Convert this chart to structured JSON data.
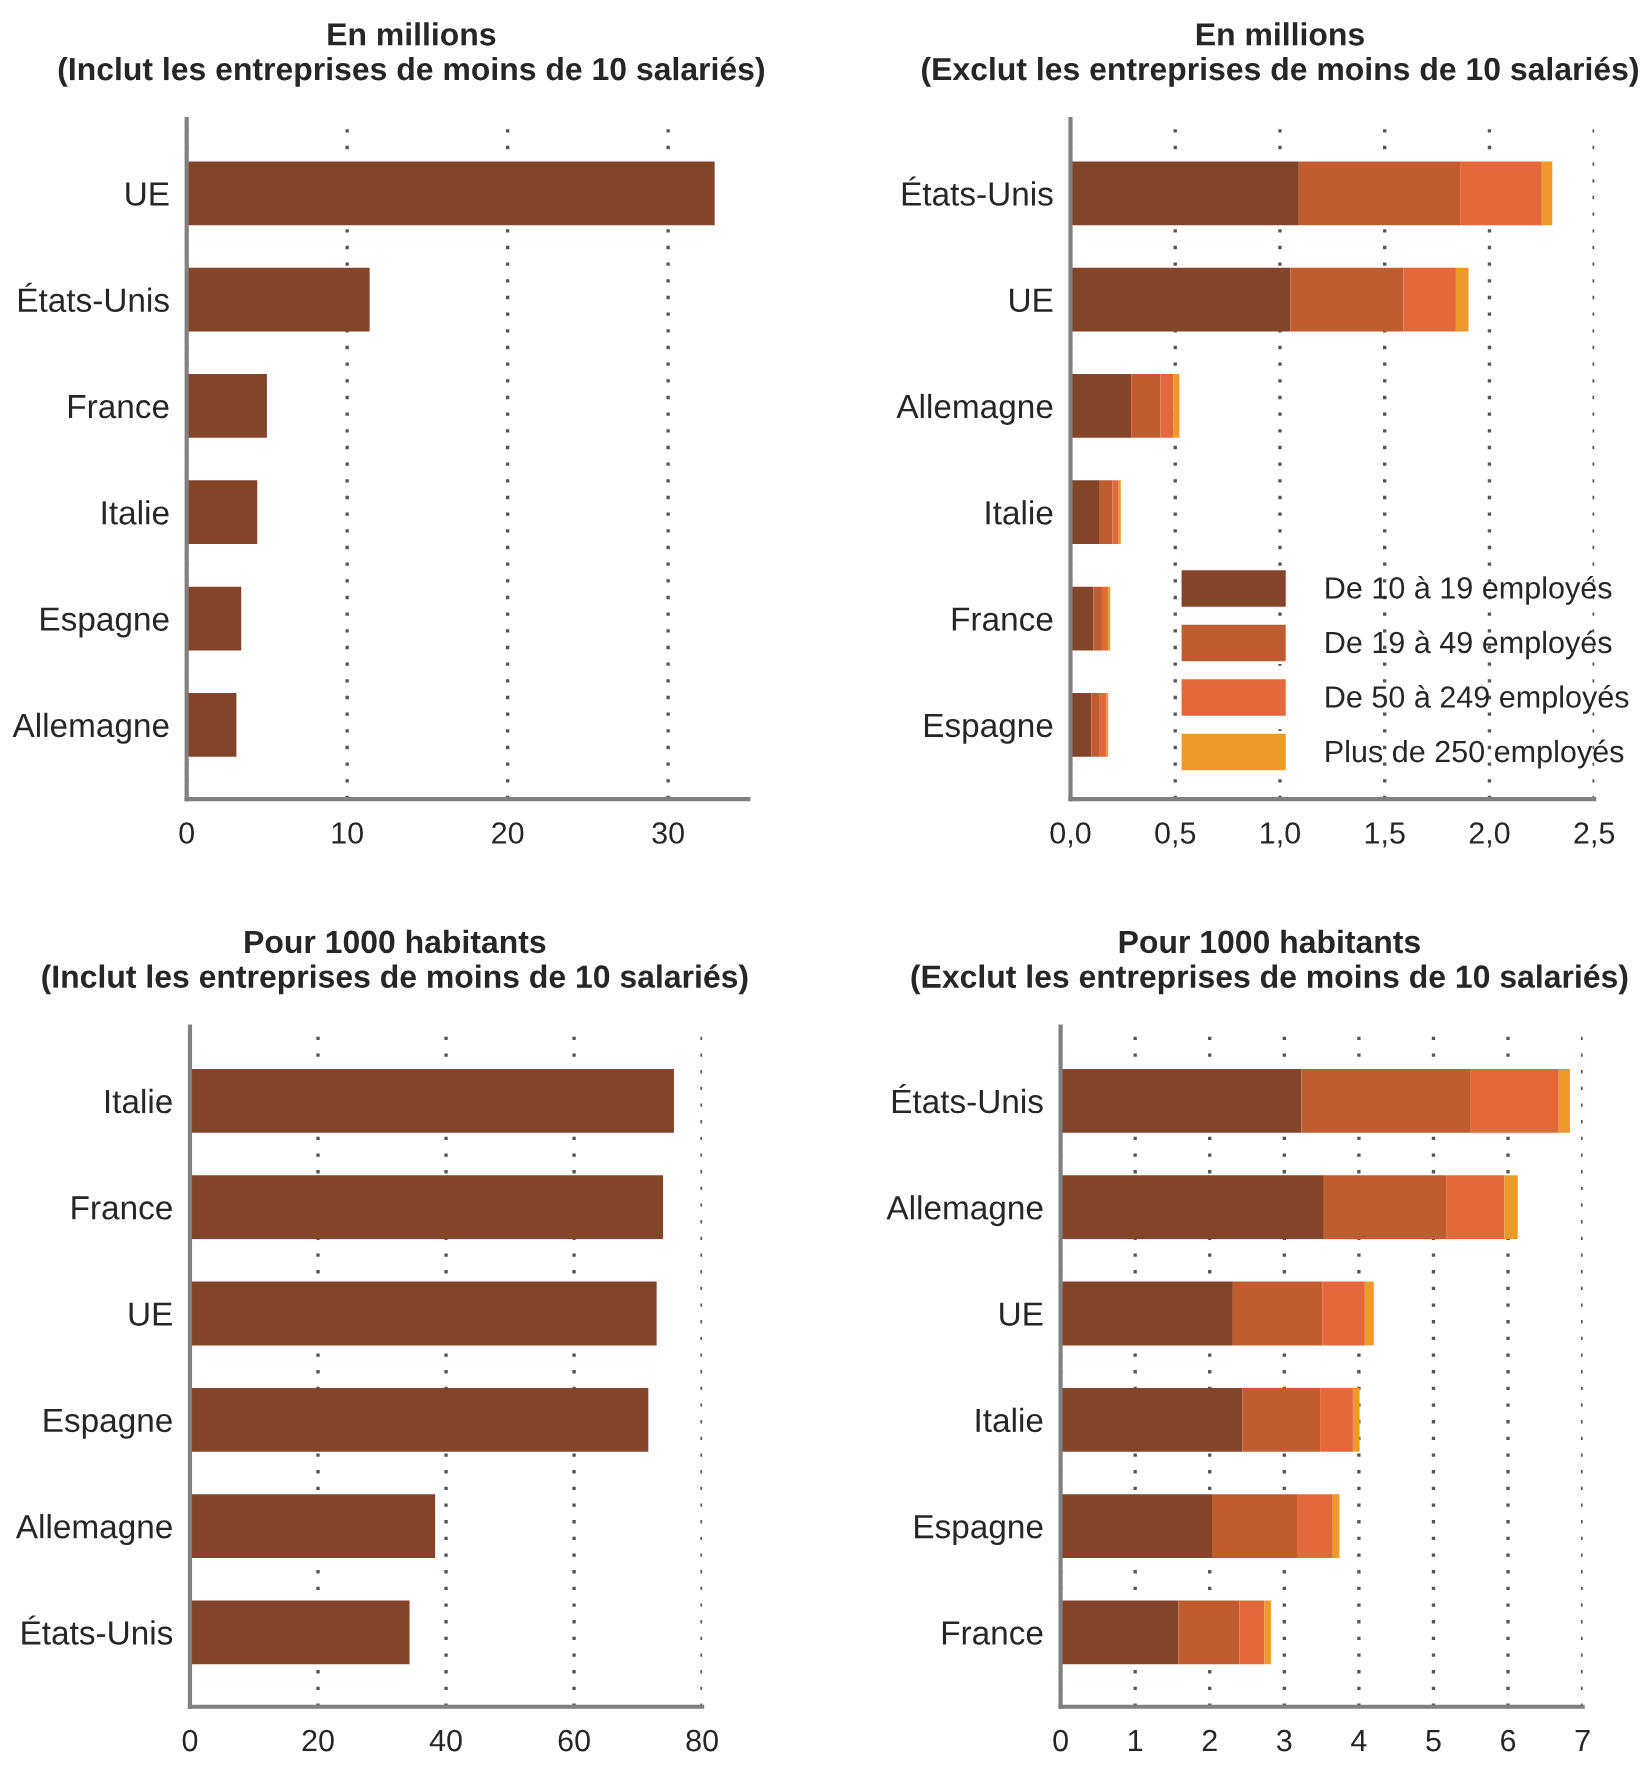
{
  "chart_data": [
    {
      "type": "bar",
      "orientation": "horizontal",
      "title": "En millions",
      "subtitle": "(Inclut les entreprises de moins de 10 salariés)",
      "categories": [
        "UE",
        "États-Unis",
        "France",
        "Italie",
        "Espagne",
        "Allemagne"
      ],
      "series": [
        {
          "color": "#83452a",
          "values": [
            32.9,
            11.4,
            5.0,
            4.4,
            3.4,
            3.1
          ]
        }
      ],
      "xlim": [
        0,
        35
      ],
      "xticks": [
        0,
        10,
        20,
        30
      ],
      "grid": "x"
    },
    {
      "type": "bar",
      "orientation": "horizontal",
      "stacked": true,
      "title": "En millions",
      "subtitle": "(Exclut les entreprises de moins de 10 salariés)",
      "categories": [
        "États-Unis",
        "UE",
        "Allemagne",
        "Italie",
        "France",
        "Espagne"
      ],
      "series": [
        {
          "name": "De 10 à 19 employés",
          "color": "#83452a",
          "values": [
            1.09,
            1.05,
            0.29,
            0.14,
            0.11,
            0.1
          ]
        },
        {
          "name": "De 19 à 49 employés",
          "color": "#c05c2f",
          "values": [
            0.77,
            0.54,
            0.14,
            0.06,
            0.04,
            0.04
          ]
        },
        {
          "name": "De 50 à 249 employés",
          "color": "#e3683a",
          "values": [
            0.39,
            0.25,
            0.06,
            0.03,
            0.03,
            0.03
          ]
        },
        {
          "name": "Plus de 250 employés",
          "color": "#ee9a2a",
          "values": [
            0.05,
            0.06,
            0.03,
            0.01,
            0.01,
            0.01
          ]
        }
      ],
      "xlim": [
        0,
        2.5
      ],
      "xticks": [
        {
          "value": 0,
          "label": "0,0"
        },
        {
          "value": 0.5,
          "label": "0,5"
        },
        {
          "value": 1,
          "label": "1,0"
        },
        {
          "value": 1.5,
          "label": "1,5"
        },
        {
          "value": 2,
          "label": "2,0"
        },
        {
          "value": 2.5,
          "label": "2,5"
        }
      ],
      "grid": "x",
      "legend": "bottom right"
    },
    {
      "type": "bar",
      "orientation": "horizontal",
      "title": "Pour 1000 habitants",
      "subtitle": "(Inclut les entreprises de moins de 10 salariés)",
      "categories": [
        "Italie",
        "France",
        "UE",
        "Espagne",
        "Allemagne",
        "États-Unis"
      ],
      "series": [
        {
          "color": "#83452a",
          "values": [
            75.6,
            73.9,
            72.9,
            71.6,
            38.3,
            34.3
          ]
        }
      ],
      "xlim": [
        0,
        80
      ],
      "xticks": [
        0,
        20,
        40,
        60,
        80
      ],
      "grid": "x"
    },
    {
      "type": "bar",
      "orientation": "horizontal",
      "stacked": true,
      "title": "Pour 1000 habitants",
      "subtitle": "(Exclut les entreprises de moins de 10 salariés)",
      "categories": [
        "États-Unis",
        "Allemagne",
        "UE",
        "Italie",
        "Espagne",
        "France"
      ],
      "series": [
        {
          "color": "#83452a",
          "values": [
            3.23,
            3.53,
            2.31,
            2.44,
            2.03,
            1.58
          ]
        },
        {
          "color": "#c05c2f",
          "values": [
            2.27,
            1.64,
            1.2,
            1.04,
            1.14,
            0.82
          ]
        },
        {
          "color": "#e3683a",
          "values": [
            1.18,
            0.78,
            0.57,
            0.44,
            0.48,
            0.33
          ]
        },
        {
          "color": "#ee9a2a",
          "values": [
            0.15,
            0.18,
            0.12,
            0.09,
            0.09,
            0.09
          ]
        }
      ],
      "xlim": [
        0,
        7
      ],
      "xticks": [
        0,
        1,
        2,
        3,
        4,
        5,
        6,
        7
      ],
      "grid": "x"
    }
  ]
}
